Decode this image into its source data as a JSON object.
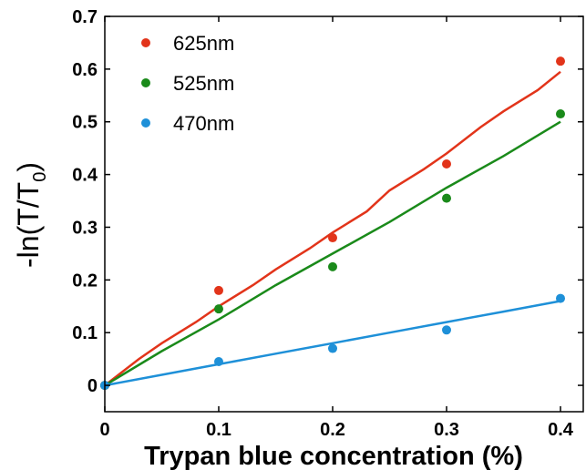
{
  "chart_data": {
    "type": "scatter",
    "xlabel": "Trypan blue concentration (%)",
    "ylabel": "-ln(T/T0)",
    "ylabel_parts": {
      "main": "-ln(T/T",
      "sub": "0",
      "tail": ")"
    },
    "xlim": [
      0,
      0.42
    ],
    "ylim": [
      -0.05,
      0.7
    ],
    "xticks": [
      0,
      0.1,
      0.2,
      0.3,
      0.4
    ],
    "xtick_labels": [
      "0",
      "0.1",
      "0.2",
      "0.3",
      "0.4"
    ],
    "yticks": [
      0,
      0.1,
      0.2,
      0.3,
      0.4,
      0.5,
      0.6,
      0.7
    ],
    "ytick_labels": [
      "0",
      "0.1",
      "0.2",
      "0.3",
      "0.4",
      "0.5",
      "0.6",
      "0.7"
    ],
    "grid": false,
    "legend_position": "top-left",
    "series": [
      {
        "name": "625nm",
        "color": "#e2341a",
        "x": [
          0,
          0.1,
          0.2,
          0.3,
          0.4
        ],
        "y": [
          0,
          0.18,
          0.28,
          0.42,
          0.615
        ],
        "fit_x": [
          0,
          0.03,
          0.05,
          0.08,
          0.1,
          0.13,
          0.15,
          0.18,
          0.2,
          0.23,
          0.25,
          0.28,
          0.3,
          0.33,
          0.35,
          0.38,
          0.4
        ],
        "fit_y": [
          0,
          0.05,
          0.08,
          0.12,
          0.15,
          0.19,
          0.22,
          0.26,
          0.29,
          0.33,
          0.37,
          0.41,
          0.44,
          0.49,
          0.52,
          0.56,
          0.595
        ]
      },
      {
        "name": "525nm",
        "color": "#1a8a1a",
        "x": [
          0,
          0.1,
          0.2,
          0.3,
          0.4
        ],
        "y": [
          0,
          0.145,
          0.225,
          0.355,
          0.515
        ],
        "fit_x": [
          0,
          0.05,
          0.1,
          0.15,
          0.2,
          0.25,
          0.3,
          0.35,
          0.4
        ],
        "fit_y": [
          0,
          0.065,
          0.125,
          0.19,
          0.25,
          0.31,
          0.375,
          0.435,
          0.5
        ]
      },
      {
        "name": "470nm",
        "color": "#1e90d8",
        "x": [
          0,
          0.1,
          0.2,
          0.3,
          0.4
        ],
        "y": [
          0,
          0.045,
          0.07,
          0.105,
          0.165
        ],
        "fit_x": [
          0,
          0.05,
          0.1,
          0.15,
          0.2,
          0.25,
          0.3,
          0.35,
          0.4
        ],
        "fit_y": [
          0,
          0.02,
          0.04,
          0.06,
          0.08,
          0.1,
          0.12,
          0.14,
          0.16
        ]
      }
    ]
  }
}
